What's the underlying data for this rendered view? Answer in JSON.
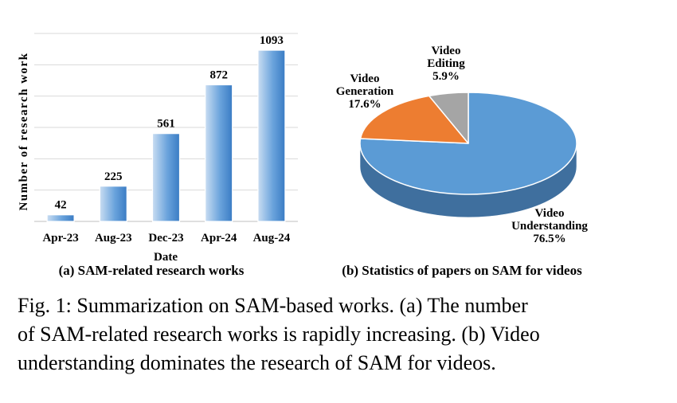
{
  "chart_data": [
    {
      "type": "bar",
      "title": "(a) SAM-related research works",
      "xlabel": "Date",
      "ylabel": "Number of research work",
      "categories": [
        "Apr-23",
        "Aug-23",
        "Dec-23",
        "Apr-24",
        "Aug-24"
      ],
      "values": [
        42,
        225,
        561,
        872,
        1093
      ],
      "data_labels": [
        "42",
        "225",
        "561",
        "872",
        "1093"
      ],
      "ylim": [
        0,
        1200
      ],
      "grid": true,
      "colors": {
        "bar_light": "#c9ddf2",
        "bar_dark": "#3a7cc4",
        "grid": "#d9d9d9"
      }
    },
    {
      "type": "pie",
      "title": "(b) Statistics of papers on SAM for videos",
      "style": "3d",
      "slices": [
        {
          "label": "Video Understanding",
          "lines": [
            "Video",
            "Understanding"
          ],
          "value": 76.5,
          "value_text": "76.5%",
          "color": "#5b9bd5",
          "side_color": "#3f6f9e"
        },
        {
          "label": "Video Generation",
          "lines": [
            "Video",
            "Generation"
          ],
          "value": 17.6,
          "value_text": "17.6%",
          "color": "#ed7d31",
          "side_color": "#b55d23"
        },
        {
          "label": "Video Editing",
          "lines": [
            "Video",
            "Editing"
          ],
          "value": 5.9,
          "value_text": "5.9%",
          "color": "#a5a5a5",
          "side_color": "#7b7b7b"
        }
      ]
    }
  ],
  "caption": {
    "lines": [
      "Fig. 1: Summarization on SAM-based works. (a) The number",
      "of SAM-related research works is rapidly increasing. (b) Video",
      "understanding dominates the research of SAM for videos."
    ]
  }
}
